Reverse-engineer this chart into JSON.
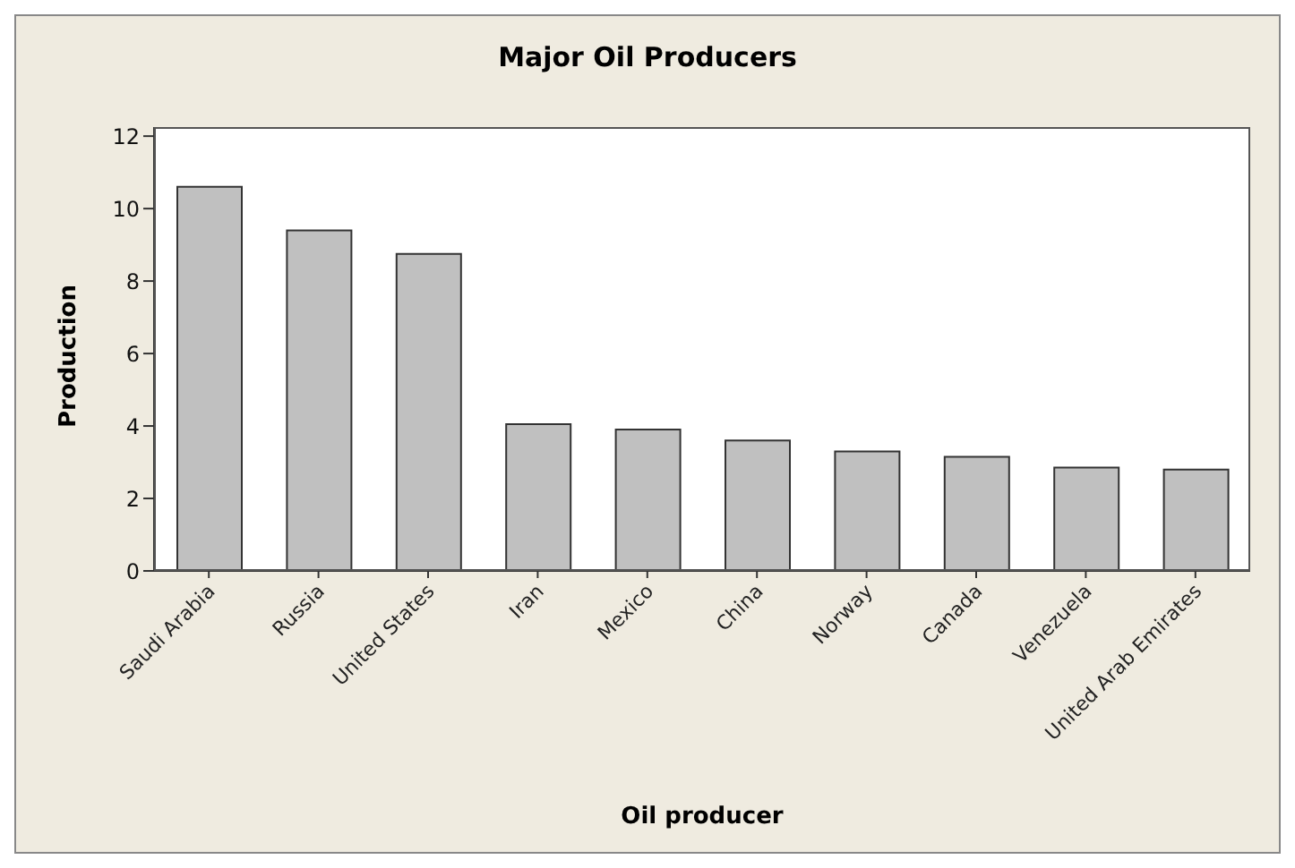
{
  "chart_data": {
    "type": "bar",
    "title": "Major Oil Producers",
    "xlabel": "Oil producer",
    "ylabel": "Production",
    "categories": [
      "Saudi Arabia",
      "Russia",
      "United States",
      "Iran",
      "Mexico",
      "China",
      "Norway",
      "Canada",
      "Venezuela",
      "United Arab Emirates"
    ],
    "values": [
      10.6,
      9.4,
      8.75,
      4.05,
      3.9,
      3.6,
      3.3,
      3.15,
      2.85,
      2.8
    ],
    "color": "#c0c0c0",
    "ylim": [
      0,
      12.25
    ],
    "yticks": [
      0,
      2,
      4,
      6,
      8,
      10,
      12
    ],
    "grid": false,
    "legend": false
  }
}
